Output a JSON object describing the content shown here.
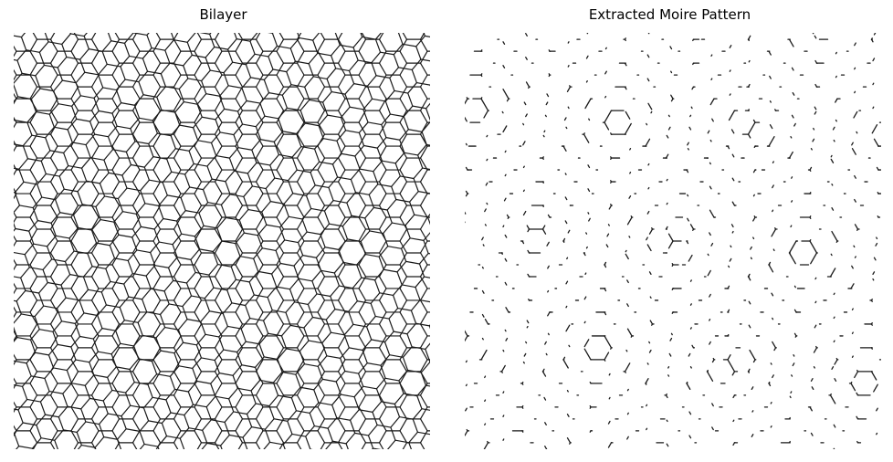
{
  "panels": [
    {
      "title": "Bilayer",
      "content": "bilayer-lattice"
    },
    {
      "title": "Extracted Moire Pattern",
      "content": "moire-pattern"
    }
  ],
  "lattice": {
    "twist_angle_deg": 10,
    "line_color": "#1a1a1a",
    "background": "#ffffff"
  }
}
